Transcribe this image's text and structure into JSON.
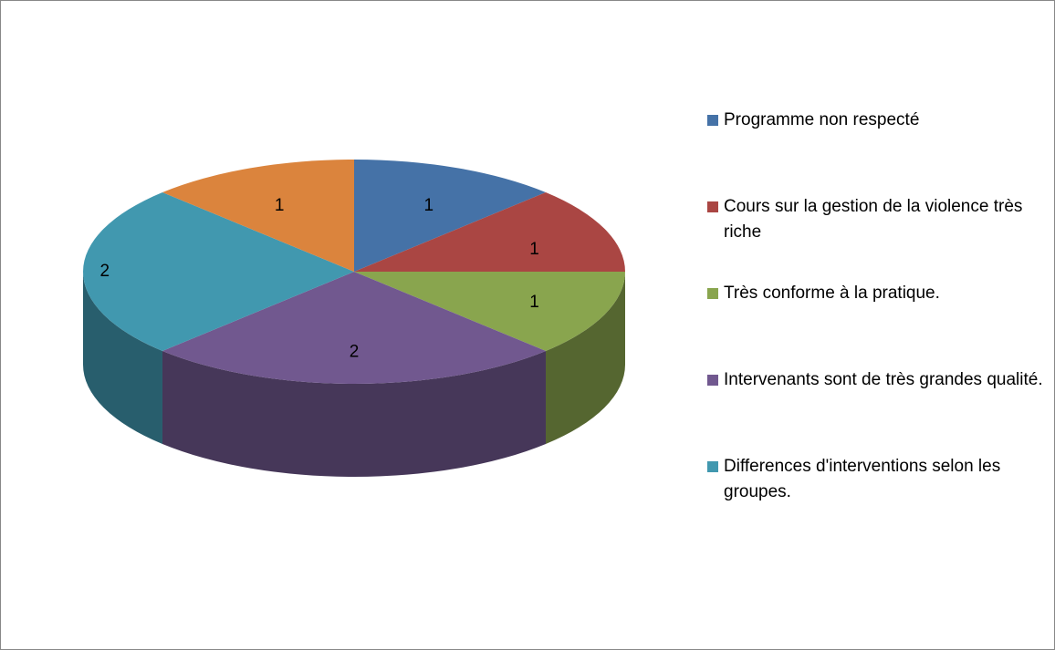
{
  "chart_data": {
    "type": "pie",
    "categories": [
      "Programme non respecté",
      "Cours sur la gestion de la violence très riche",
      "Très conforme à la pratique.",
      "Intervenants sont de très grandes qualité.",
      "Differences d'interventions selon les groupes.",
      null
    ],
    "values": [
      1,
      1,
      1,
      2,
      2,
      1
    ],
    "colors": [
      "#4572a7",
      "#aa4643",
      "#89a54e",
      "#71588f",
      "#4198af",
      "#db843d"
    ],
    "legend": "right"
  }
}
